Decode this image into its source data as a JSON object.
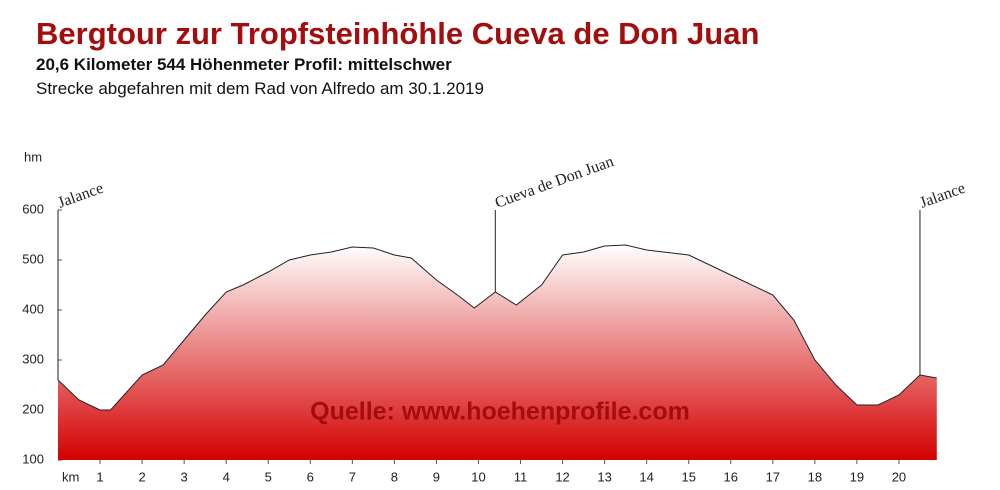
{
  "chart_data": {
    "type": "area",
    "title": "Bergtour zur Tropfsteinhöhle Cueva de Don Juan",
    "subtitle": "20,6 Kilometer  544 Höhenmeter  Profil: mittelschwer",
    "caption": "Strecke abgefahren mit dem Rad von Alfredo am 30.1.2019",
    "watermark": "Quelle: www.hoehenprofile.com",
    "x_label": "km",
    "y_label": "hm",
    "x": [
      0,
      0.5,
      1,
      1.25,
      2,
      2.5,
      3,
      3.5,
      4,
      4.4,
      5,
      5.5,
      6,
      6.5,
      7,
      7.5,
      8,
      8.4,
      9,
      9.5,
      9.9,
      10.4,
      10.9,
      11.5,
      12,
      12.5,
      13,
      13.5,
      14,
      15,
      16,
      17,
      17.5,
      18,
      18.5,
      19,
      19.5,
      20,
      20.5,
      20.9
    ],
    "series": [
      {
        "color": "#d40000",
        "values": [
          260,
          220,
          200,
          200,
          270,
          290,
          340,
          390,
          436,
          450,
          476,
          500,
          510,
          516,
          526,
          524,
          510,
          504,
          460,
          430,
          404,
          436,
          410,
          450,
          510,
          516,
          528,
          530,
          520,
          510,
          470,
          430,
          380,
          300,
          250,
          210,
          210,
          230,
          270,
          264
        ]
      }
    ],
    "annotations": [
      {
        "text": "Jalance",
        "x": 0
      },
      {
        "text": "Cueva de Don Juan",
        "x": 10.4
      },
      {
        "text": "Jalance",
        "x": 20.5
      }
    ],
    "xlim": [
      0,
      21
    ],
    "ylim": [
      100,
      600
    ],
    "xticks": [
      1,
      2,
      3,
      4,
      5,
      6,
      7,
      8,
      9,
      10,
      11,
      12,
      13,
      14,
      15,
      16,
      17,
      18,
      19,
      20
    ],
    "yticks": [
      100,
      200,
      300,
      400,
      500,
      600
    ],
    "grid": false
  }
}
